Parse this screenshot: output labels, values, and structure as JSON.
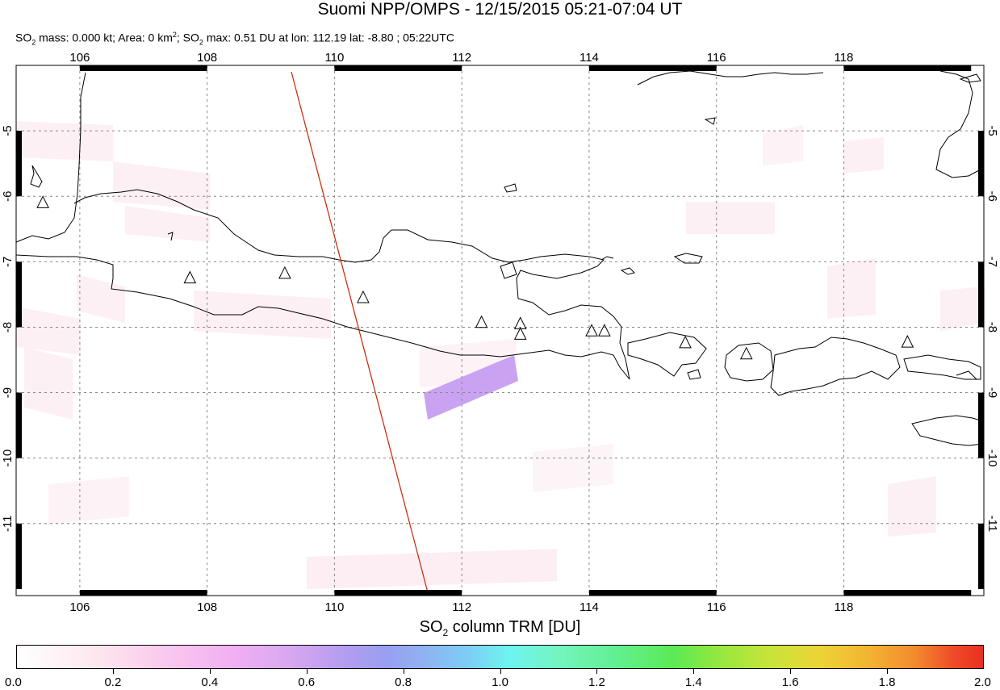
{
  "title": "Suomi NPP/OMPS - 12/15/2015 05:21-07:04 UT",
  "subtitle": {
    "mass_label": "SO",
    "mass_rest": " mass: 0.000 kt; Area: 0 km",
    "area_sup": "2",
    "max_label": "; SO",
    "max_rest": " max: 0.51 DU at lon: 112.19 lat: -8.80 ; 05:22UTC",
    "sub2": "2"
  },
  "map": {
    "lon_ticks": [
      "106",
      "108",
      "110",
      "112",
      "114",
      "116",
      "118"
    ],
    "lat_ticks": [
      "-5",
      "-6",
      "-7",
      "-8",
      "-9",
      "-10",
      "-11"
    ],
    "lon_range": [
      105.0,
      120.2
    ],
    "lat_range": [
      -12.1,
      -4.0
    ],
    "volcanoes": [
      {
        "lon": 105.42,
        "lat": -6.1
      },
      {
        "lon": 107.73,
        "lat": -7.25
      },
      {
        "lon": 109.22,
        "lat": -7.18
      },
      {
        "lon": 110.45,
        "lat": -7.55
      },
      {
        "lon": 112.31,
        "lat": -7.93
      },
      {
        "lon": 112.92,
        "lat": -7.95
      },
      {
        "lon": 112.92,
        "lat": -8.11
      },
      {
        "lon": 114.04,
        "lat": -8.06
      },
      {
        "lon": 114.24,
        "lat": -8.06
      },
      {
        "lon": 115.51,
        "lat": -8.24
      },
      {
        "lon": 116.47,
        "lat": -8.41
      },
      {
        "lon": 119.0,
        "lat": -8.23
      }
    ],
    "orbit_line_color": "#cc2200",
    "so2_max_patch_color": "#c8a0f0"
  },
  "colorbar": {
    "title_prefix": "SO",
    "title_sub": "2",
    "title_rest": " column TRM [DU]",
    "labels": [
      "0.0",
      "0.2",
      "0.4",
      "0.6",
      "0.8",
      "1.0",
      "1.2",
      "1.4",
      "1.6",
      "1.8",
      "2.0"
    ],
    "range": [
      0.0,
      2.0
    ]
  }
}
